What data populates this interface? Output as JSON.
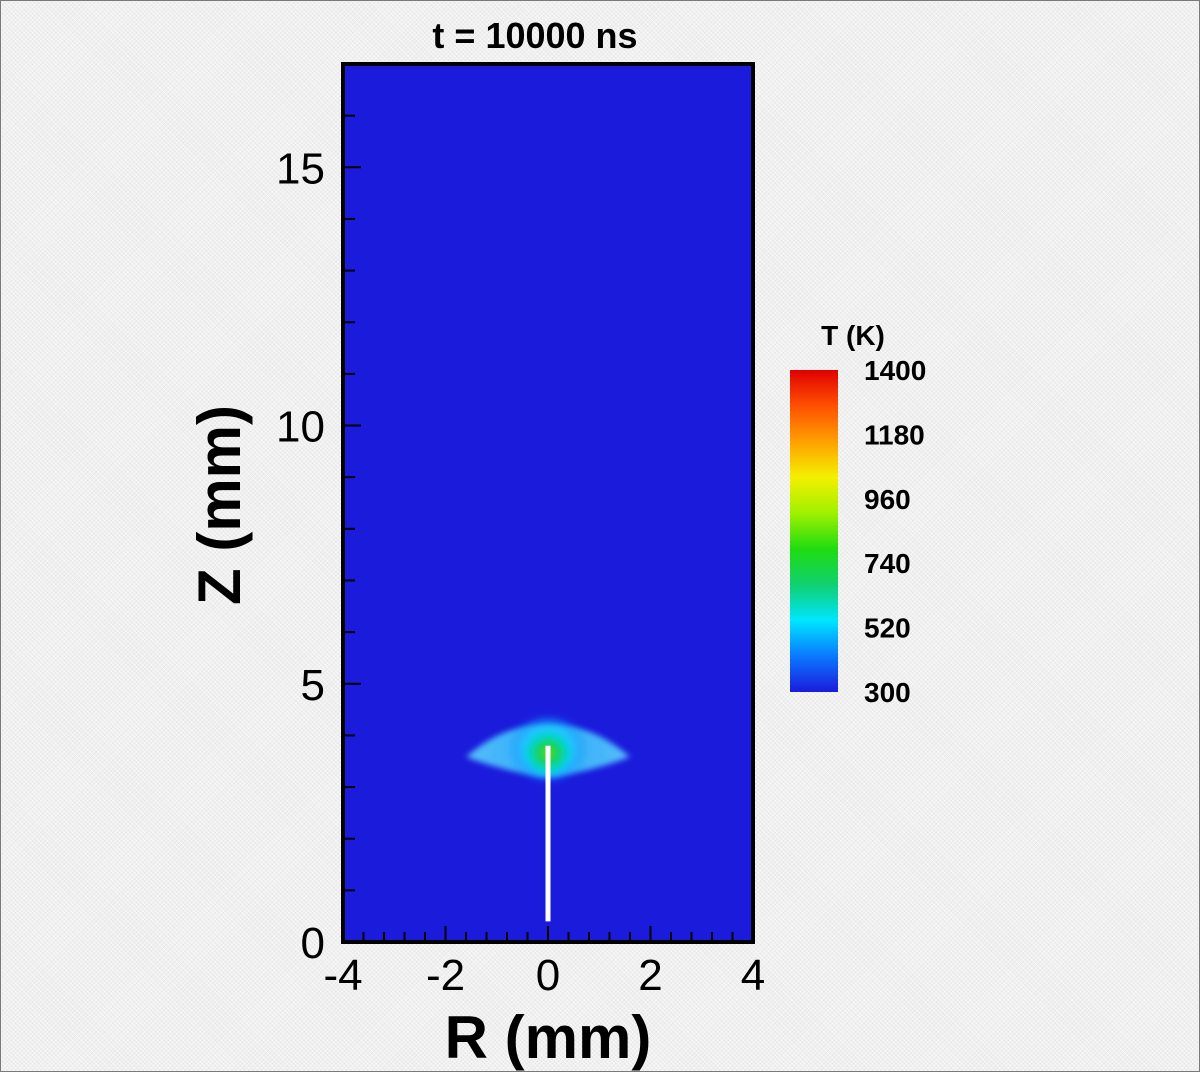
{
  "chart_data": {
    "type": "heatmap",
    "title": "t = 10000 ns",
    "xlabel": "R (mm)",
    "ylabel": "Z (mm)",
    "xlim": [
      -4,
      4
    ],
    "ylim": [
      0,
      17
    ],
    "x_ticks": [
      -4,
      -2,
      0,
      2,
      4
    ],
    "x_tick_labels": [
      "-4",
      "-2",
      "0",
      "2",
      "4"
    ],
    "x_minor_step": 0.4,
    "y_ticks": [
      0,
      5,
      10,
      15
    ],
    "y_tick_labels": [
      "0",
      "5",
      "10",
      "15"
    ],
    "y_minor_step": 1,
    "grid": false,
    "colorbar": {
      "title": "T (K)",
      "min": 300,
      "max": 1400,
      "ticks": [
        300,
        520,
        740,
        960,
        1180,
        1400
      ],
      "tick_labels": [
        "300",
        "520",
        "740",
        "960",
        "1180",
        "1400"
      ],
      "placement": "right",
      "colormap": [
        "#1b1bdc",
        "#0a78ff",
        "#00e6ff",
        "#10d070",
        "#20dc10",
        "#a0f000",
        "#f4f000",
        "#ffa000",
        "#ff5000",
        "#e00000"
      ]
    },
    "background_value": 300,
    "hot_region": {
      "peak_value": 860,
      "peak_r": 0,
      "peak_z": 3.7,
      "r_extent": [
        -1.6,
        1.6
      ],
      "z_extent": [
        3.1,
        4.3
      ]
    },
    "electrode": {
      "r": 0,
      "z_range": [
        0.4,
        3.8
      ],
      "color": "#ffffff"
    }
  }
}
